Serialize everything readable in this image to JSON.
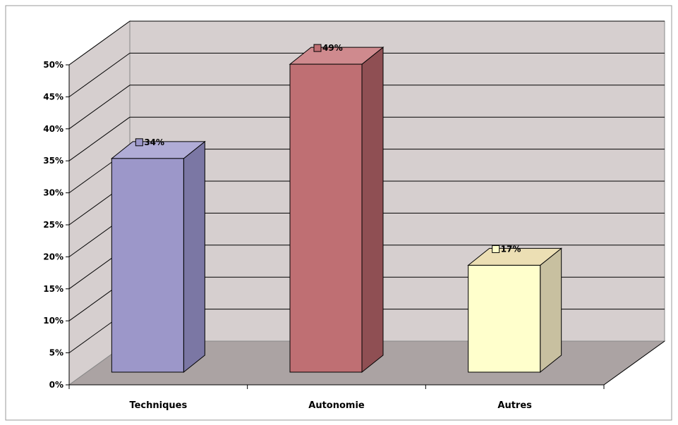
{
  "chart_data": {
    "type": "bar",
    "categories": [
      "Techniques",
      "Autonomie",
      "Autres"
    ],
    "values": [
      34,
      49,
      17
    ],
    "data_labels": [
      "34%",
      "49%",
      "17%"
    ],
    "colors": {
      "bars": [
        {
          "front": "#9c97c9",
          "side": "#7b77a4",
          "top": "#b0acd6"
        },
        {
          "front": "#bf6f73",
          "side": "#8f4f53",
          "top": "#cf8a8e"
        },
        {
          "front": "#ffffcc",
          "side": "#c8c0a0",
          "top": "#ecdfb4"
        }
      ],
      "back_wall": "#d6cfcf",
      "side_wall": "#d6cfcf",
      "floor": "#aba3a3",
      "gridline": "#000000",
      "frame": "#999999"
    },
    "y_ticks": [
      "0%",
      "5%",
      "10%",
      "15%",
      "20%",
      "25%",
      "30%",
      "35%",
      "40%",
      "45%",
      "50%"
    ],
    "ylim": [
      0,
      50
    ],
    "grid": true,
    "style": "3d-column",
    "title": "",
    "xlabel": "",
    "ylabel": ""
  }
}
